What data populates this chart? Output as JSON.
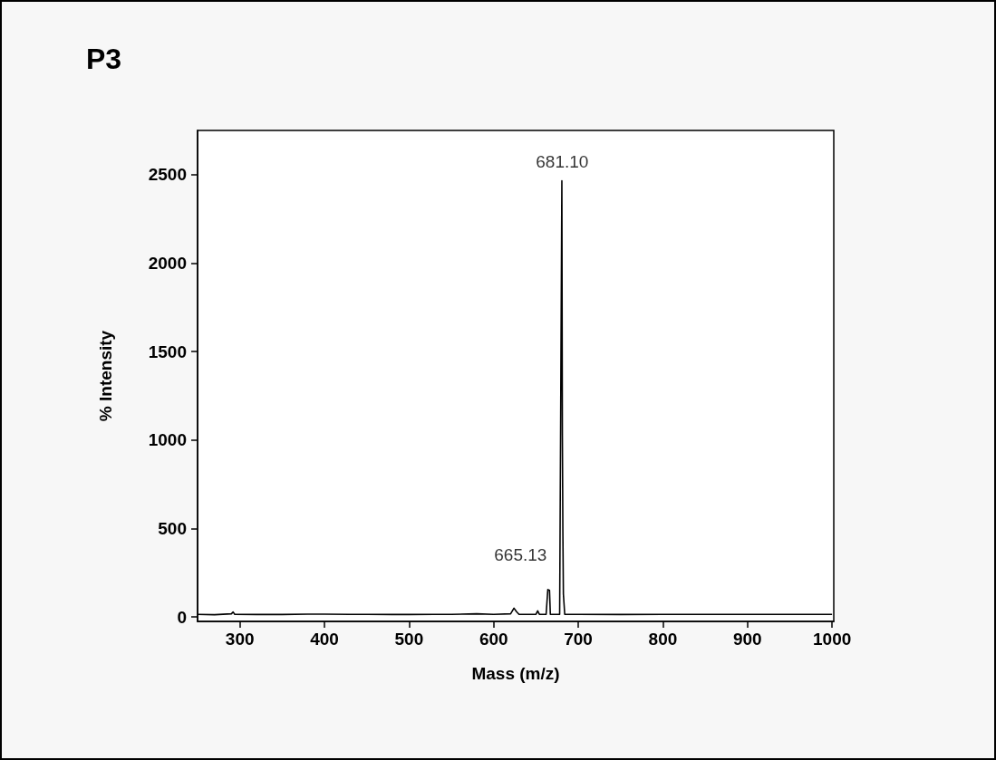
{
  "chart_data": {
    "type": "line",
    "title": "P3",
    "xlabel": "Mass (m/z)",
    "ylabel": "% Intensity",
    "xlim": [
      250,
      1002
    ],
    "xticks": [
      300,
      400,
      500,
      600,
      700,
      800,
      900,
      1000
    ],
    "ylim": [
      -25,
      2750
    ],
    "yticks": [
      0,
      500,
      1000,
      1500,
      2000,
      2500
    ],
    "grid": false,
    "marker": "none",
    "line_style": "solid",
    "series": [
      {
        "color": "#000000",
        "x": [
          250,
          270,
          290,
          292,
          294,
          320,
          350,
          380,
          400,
          430,
          450,
          480,
          500,
          530,
          550,
          580,
          600,
          620,
          624,
          627,
          630,
          650,
          652,
          654,
          662,
          664,
          666,
          667,
          678,
          680.6,
          681.2,
          681.8,
          682.4,
          683,
          684,
          700,
          750,
          800,
          850,
          900,
          950,
          1000
        ],
        "values": [
          15,
          13,
          18,
          28,
          15,
          14,
          14,
          16,
          16,
          15,
          15,
          14,
          14,
          15,
          15,
          18,
          15,
          18,
          50,
          30,
          15,
          15,
          35,
          15,
          15,
          155,
          150,
          15,
          15,
          2465,
          1030,
          480,
          130,
          130,
          15,
          15,
          14,
          15,
          15,
          15,
          15,
          15
        ]
      }
    ],
    "annotations": [
      {
        "text": "681.10",
        "x": 681,
        "y": 2465
      },
      {
        "text": "665.13",
        "x": 665,
        "y": 155
      }
    ]
  }
}
